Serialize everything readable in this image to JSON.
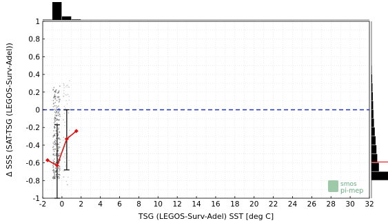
{
  "chart_data": {
    "type": "scatter",
    "xlabel": "TSG (LEGOS-Surv-Adel) SST [deg C]",
    "ylabel": "Δ SSS (SAT-TSG (LEGOS-Surv-Adel))",
    "xlim": [
      -2,
      32
    ],
    "ylim": [
      -1,
      1
    ],
    "x_ticks": [
      "-2",
      "0",
      "2",
      "4",
      "6",
      "8",
      "10",
      "12",
      "14",
      "16",
      "18",
      "20",
      "22",
      "24",
      "26",
      "28",
      "30",
      "32"
    ],
    "y_ticks": [
      "-1",
      "-0.8",
      "-0.6",
      "-0.4",
      "-0.2",
      "0",
      "0.2",
      "0.4",
      "0.6",
      "0.8",
      "1"
    ],
    "grid": true,
    "reference_line": {
      "y": 0,
      "color": "#2233bb",
      "style": "dashed"
    },
    "binned_mean": {
      "color": "#dd1111",
      "x": [
        -1.5,
        -0.5,
        0.5,
        1.5
      ],
      "y": [
        -0.57,
        -0.63,
        -0.33,
        -0.24
      ]
    },
    "std_bars": {
      "color": "#000000",
      "x": [
        -0.5,
        0.5
      ],
      "low": [
        -1.0,
        -0.68
      ],
      "high": [
        -0.17,
        0.0
      ]
    },
    "scatter_color": "#555555",
    "top_histogram": {
      "bins_x": [
        -1.5,
        -0.5,
        0.5,
        1.5
      ],
      "counts": [
        0.02,
        1.0,
        0.2,
        0.03
      ]
    },
    "right_histogram": {
      "bins_y": [
        -0.75,
        -0.65,
        -0.55,
        -0.45,
        -0.35,
        -0.25,
        -0.15,
        -0.05,
        0.05,
        0.15,
        0.25,
        0.35,
        0.45
      ],
      "counts": [
        1.0,
        0.45,
        0.35,
        0.3,
        0.25,
        0.2,
        0.15,
        0.12,
        0.1,
        0.08,
        0.06,
        0.04,
        0.02
      ]
    },
    "right_hist_marker": {
      "y": -0.59,
      "color": "#dd1111"
    }
  },
  "watermark": {
    "line1": "smos",
    "line2": "pi-mep"
  }
}
